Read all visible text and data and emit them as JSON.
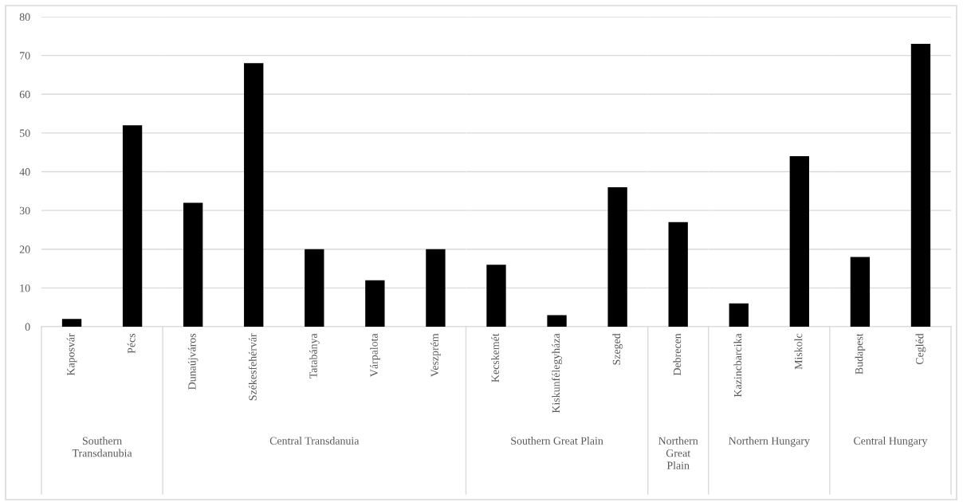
{
  "chart_data": [
    {
      "type": "bar",
      "xlabel": "Southern\nTransdanubia",
      "categories": [
        "Kaposvár",
        "Pécs"
      ],
      "values": [
        2,
        52
      ],
      "color": "#000000",
      "ylim": [
        0,
        80
      ],
      "yticks": [
        0,
        10,
        20,
        30,
        40,
        50,
        60,
        70,
        80
      ],
      "grid": "y"
    },
    {
      "type": "bar",
      "xlabel": "Central Transdanuia",
      "categories": [
        "Dunaújváros",
        "Székesfehérvár",
        "Tatabánya",
        "Várpalota",
        "Veszprém"
      ],
      "values": [
        32,
        68,
        20,
        12,
        20
      ],
      "color": "#000000",
      "ylim": [
        0,
        80
      ],
      "yticks": [
        0,
        10,
        20,
        30,
        40,
        50,
        60,
        70,
        80
      ],
      "grid": "y",
      "tick_labels": "x"
    },
    {
      "type": "bar",
      "xlabel": "Southern Great Plain",
      "categories": [
        "Kecskemét",
        "Kiskunfélegyháza",
        "Szeged"
      ],
      "values": [
        16,
        3,
        36
      ],
      "color": "#000000",
      "ylim": [
        0,
        80
      ],
      "yticks": [
        0,
        10,
        20,
        30,
        40,
        50,
        60,
        70,
        80
      ],
      "grid": "y",
      "tick_labels": "x"
    },
    {
      "type": "bar",
      "xlabel": "Northern\nGreat\nPlain",
      "categories": [
        "Debrecen"
      ],
      "values": [
        27
      ],
      "color": "#000000",
      "ylim": [
        0,
        80
      ],
      "yticks": [
        0,
        10,
        20,
        30,
        40,
        50,
        60,
        70,
        80
      ],
      "grid": "y",
      "tick_labels": "x"
    },
    {
      "type": "bar",
      "xlabel": "Northern Hungary",
      "categories": [
        "Kazincbarcika",
        "Miskolc"
      ],
      "values": [
        6,
        44
      ],
      "color": "#000000",
      "ylim": [
        0,
        80
      ],
      "yticks": [
        0,
        10,
        20,
        30,
        40,
        50,
        60,
        70,
        80
      ],
      "grid": "y",
      "tick_labels": "x"
    },
    {
      "type": "bar",
      "xlabel": "Central Hungary",
      "categories": [
        "Budapest",
        "Cegléd"
      ],
      "values": [
        18,
        73
      ],
      "color": "#000000",
      "ylim": [
        0,
        80
      ],
      "yticks": [
        0,
        10,
        20,
        30,
        40,
        50,
        60,
        70,
        80
      ],
      "grid": "y",
      "tick_labels": "x"
    }
  ]
}
